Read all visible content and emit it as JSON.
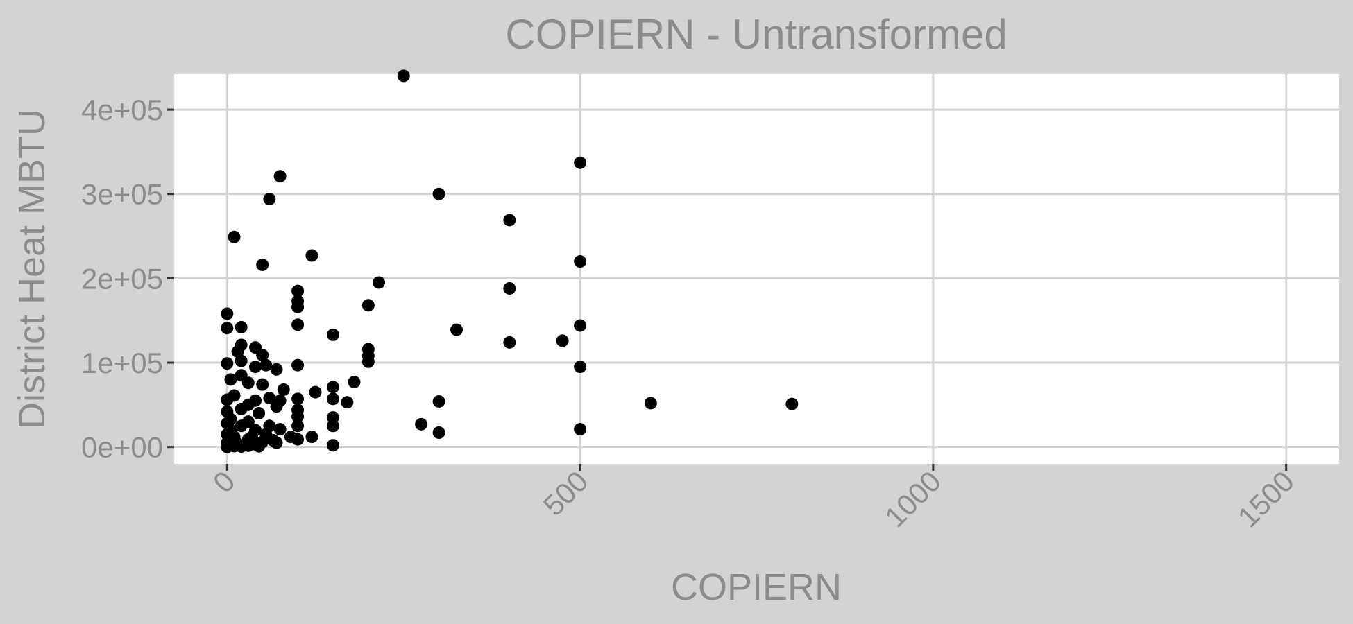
{
  "chart_data": {
    "type": "scatter",
    "title": "COPIERN - Untransformed",
    "xlabel": "COPIERN",
    "ylabel": "District Heat MBTU",
    "xlim": [
      -75,
      1575
    ],
    "ylim": [
      -20000,
      442000
    ],
    "x_ticks": [
      0,
      500,
      1000,
      1500
    ],
    "x_tick_labels": [
      "0",
      "500",
      "1000",
      "1500"
    ],
    "y_ticks": [
      0,
      100000,
      200000,
      300000,
      400000
    ],
    "y_tick_labels": [
      "0e+00",
      "1e+05",
      "2e+05",
      "3e+05",
      "4e+05"
    ],
    "grid": true,
    "legend": "none",
    "colors": {
      "panel_background": "#ffffff",
      "plot_background": "#d3d3d3",
      "points": "#000000",
      "text": "#8c8c8c",
      "grid": "#d3d3d3"
    },
    "series": [
      {
        "points": [
          [
            250,
            440000
          ],
          [
            500,
            337000
          ],
          [
            75,
            321000
          ],
          [
            60,
            294000
          ],
          [
            300,
            300000
          ],
          [
            400,
            269000
          ],
          [
            10,
            249000
          ],
          [
            120,
            227000
          ],
          [
            50,
            216000
          ],
          [
            500,
            220000
          ],
          [
            215,
            195000
          ],
          [
            400,
            188000
          ],
          [
            100,
            185000
          ],
          [
            200,
            168000
          ],
          [
            100,
            173000
          ],
          [
            100,
            166000
          ],
          [
            0,
            158000
          ],
          [
            0,
            141000
          ],
          [
            20,
            142000
          ],
          [
            100,
            145000
          ],
          [
            500,
            144000
          ],
          [
            325,
            139000
          ],
          [
            150,
            133000
          ],
          [
            400,
            124000
          ],
          [
            475,
            126000
          ],
          [
            20,
            121000
          ],
          [
            40,
            118000
          ],
          [
            15,
            113000
          ],
          [
            50,
            109000
          ],
          [
            200,
            116000
          ],
          [
            200,
            108000
          ],
          [
            200,
            101000
          ],
          [
            20,
            102000
          ],
          [
            40,
            95000
          ],
          [
            0,
            99000
          ],
          [
            55,
            97000
          ],
          [
            100,
            97000
          ],
          [
            500,
            95000
          ],
          [
            70,
            92000
          ],
          [
            5,
            80000
          ],
          [
            20,
            85000
          ],
          [
            180,
            77000
          ],
          [
            30,
            76000
          ],
          [
            50,
            74000
          ],
          [
            80,
            68000
          ],
          [
            125,
            65000
          ],
          [
            150,
            71000
          ],
          [
            10,
            61000
          ],
          [
            40,
            55000
          ],
          [
            60,
            58000
          ],
          [
            75,
            55000
          ],
          [
            100,
            57000
          ],
          [
            150,
            57000
          ],
          [
            170,
            53000
          ],
          [
            300,
            54000
          ],
          [
            600,
            52000
          ],
          [
            800,
            51000
          ],
          [
            0,
            56000
          ],
          [
            30,
            50000
          ],
          [
            70,
            48000
          ],
          [
            100,
            44000
          ],
          [
            0,
            42000
          ],
          [
            20,
            45000
          ],
          [
            45,
            40000
          ],
          [
            100,
            36000
          ],
          [
            150,
            35000
          ],
          [
            275,
            27000
          ],
          [
            5,
            33000
          ],
          [
            30,
            30000
          ],
          [
            60,
            25000
          ],
          [
            75,
            21000
          ],
          [
            100,
            25000
          ],
          [
            150,
            25000
          ],
          [
            300,
            17000
          ],
          [
            500,
            21000
          ],
          [
            0,
            28000
          ],
          [
            20,
            25000
          ],
          [
            40,
            20000
          ],
          [
            55,
            15000
          ],
          [
            90,
            12000
          ],
          [
            120,
            12000
          ],
          [
            0,
            15000
          ],
          [
            10,
            12000
          ],
          [
            30,
            9000
          ],
          [
            50,
            6000
          ],
          [
            70,
            5000
          ],
          [
            100,
            9000
          ],
          [
            0,
            5000
          ],
          [
            15,
            4000
          ],
          [
            25,
            2000
          ],
          [
            40,
            3000
          ],
          [
            150,
            2000
          ],
          [
            5,
            20000
          ],
          [
            35,
            12000
          ],
          [
            65,
            8000
          ],
          [
            0,
            0
          ],
          [
            10,
            1000
          ],
          [
            20,
            500
          ],
          [
            30,
            1500
          ],
          [
            45,
            800
          ]
        ]
      }
    ]
  }
}
